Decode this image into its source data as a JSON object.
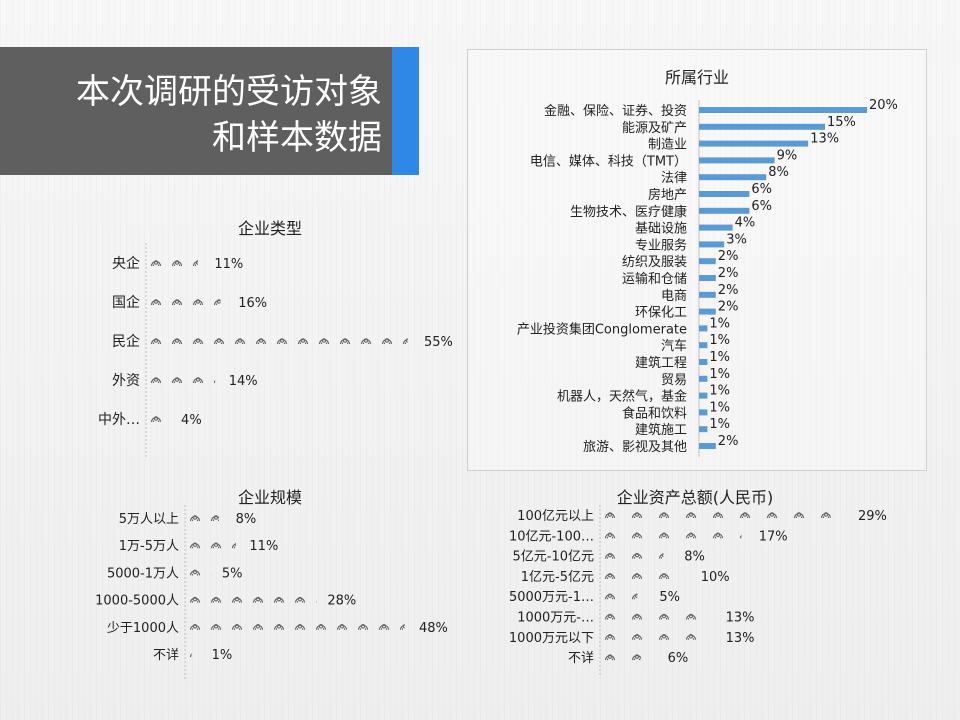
{
  "title": {
    "line1": "本次调研的受访对象",
    "line2": "和样本数据"
  },
  "colors": {
    "bar": "#5b9bd5",
    "accent": "#2f87e6",
    "title_bg": "#5f5f5f",
    "icon": "#666666"
  },
  "icon_name": "person-icon",
  "chart_data": [
    {
      "id": "industry",
      "type": "bar",
      "orientation": "horizontal",
      "title": "所属行业",
      "categories": [
        "金融、保险、证券、投资",
        "能源及矿产",
        "制造业",
        "电信、媒体、科技（TMT）",
        "法律",
        "房地产",
        "生物技术、医疗健康",
        "基础设施",
        "专业服务",
        "纺织及服装",
        "运输和仓储",
        "电商",
        "环保化工",
        "产业投资集团Conglomerate",
        "汽车",
        "建筑工程",
        "贸易",
        "机器人，天然气，基金",
        "食品和饮料",
        "建筑施工",
        "旅游、影视及其他"
      ],
      "values": [
        20,
        15,
        13,
        9,
        8,
        6,
        6,
        4,
        3,
        2,
        2,
        2,
        2,
        1,
        1,
        1,
        1,
        1,
        1,
        1,
        2
      ],
      "value_labels": [
        "20%",
        "15%",
        "13%",
        "9%",
        "8%",
        "6%",
        "6%",
        "4%",
        "3%",
        "2%",
        "2%",
        "2%",
        "2%",
        "1%",
        "1%",
        "1%",
        "1%",
        "1%",
        "1%",
        "1%",
        "2%"
      ],
      "xlim": [
        0,
        20
      ],
      "grid": false
    },
    {
      "id": "company-type",
      "type": "bar",
      "style": "pictograph",
      "orientation": "horizontal",
      "title": "企业类型",
      "categories": [
        "央企",
        "国企",
        "民企",
        "外资",
        "中外…"
      ],
      "values": [
        11,
        16,
        55,
        14,
        4
      ],
      "value_labels": [
        "11%",
        "16%",
        "55%",
        "14%",
        "4%"
      ],
      "xlim": [
        0,
        55
      ]
    },
    {
      "id": "company-size",
      "type": "bar",
      "style": "pictograph",
      "orientation": "horizontal",
      "title": "企业规模",
      "categories": [
        "5万人以上",
        "1万-5万人",
        "5000-1万人",
        "1000-5000人",
        "少于1000人",
        "不详"
      ],
      "values": [
        8,
        11,
        5,
        28,
        48,
        1
      ],
      "value_labels": [
        "8%",
        "11%",
        "5%",
        "28%",
        "48%",
        "1%"
      ],
      "xlim": [
        0,
        48
      ]
    },
    {
      "id": "company-assets",
      "type": "bar",
      "style": "pictograph",
      "orientation": "horizontal",
      "title": "企业资产总额(人民币)",
      "categories": [
        "100亿元以上",
        "10亿元-100…",
        "5亿元-10亿元",
        "1亿元-5亿元",
        "5000万元-1…",
        "1000万元-…",
        "1000万元以下",
        "不详"
      ],
      "values": [
        29,
        17,
        8,
        10,
        5,
        13,
        13,
        6
      ],
      "value_labels": [
        "29%",
        "17%",
        "8%",
        "10%",
        "5%",
        "13%",
        "13%",
        "6%"
      ],
      "xlim": [
        0,
        29
      ]
    }
  ]
}
